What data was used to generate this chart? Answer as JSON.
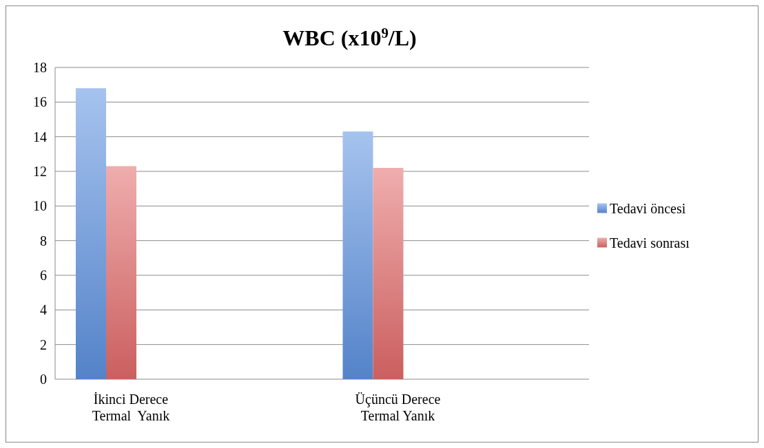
{
  "chart_data": {
    "type": "bar",
    "title": "WBC (x10$^{9}$/L)",
    "categories": [
      "İkinci Derece\nTermal  Yanık",
      "Üçüncü Derece\nTermal Yanık"
    ],
    "series": [
      {
        "name": "Tedavi öncesi",
        "color": "#5e92e0",
        "values": [
          16.8,
          14.3
        ]
      },
      {
        "name": "Tedavi sonrası",
        "color": "#e26a6a",
        "values": [
          12.3,
          12.2
        ]
      }
    ],
    "ylim": [
      0,
      18
    ],
    "yticks": [
      0,
      2,
      4,
      6,
      8,
      10,
      12,
      14,
      16,
      18
    ],
    "grid": "y",
    "legend": "right"
  }
}
